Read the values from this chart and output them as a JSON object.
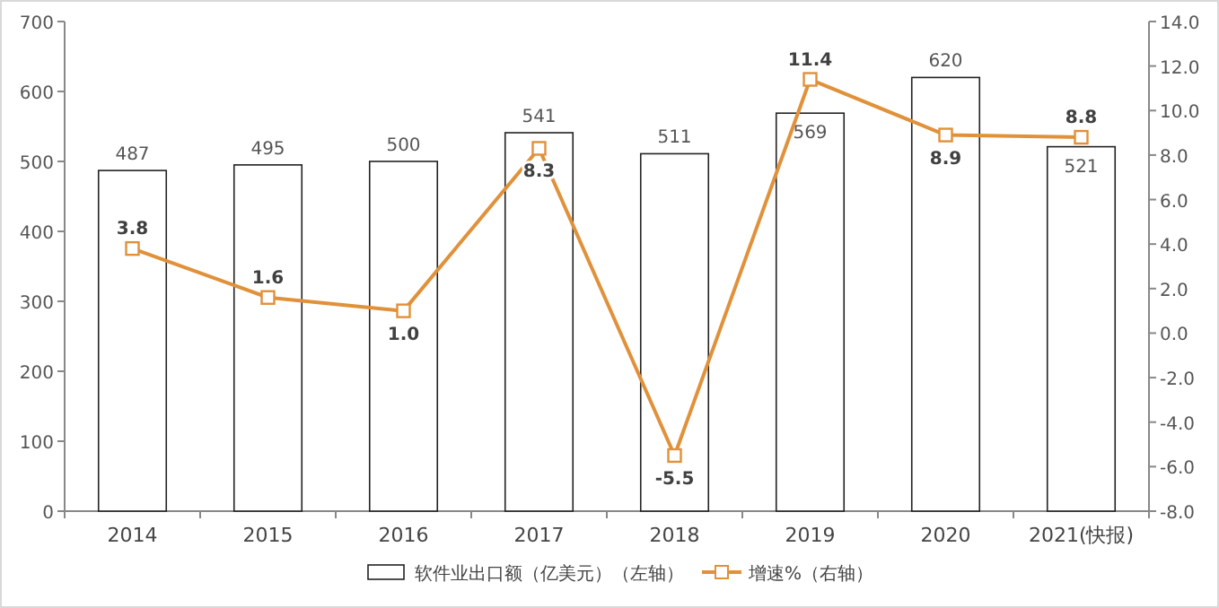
{
  "chart_data": {
    "type": "bar",
    "categories": [
      "2014",
      "2015",
      "2016",
      "2017",
      "2018",
      "2019",
      "2020",
      "2021(快报)"
    ],
    "series": [
      {
        "name": "软件业出口额（亿美元）（左轴）",
        "color": "#ffffff",
        "values": [
          487,
          495,
          500,
          541,
          511,
          569,
          620,
          521
        ],
        "value_labels": [
          "487",
          "495",
          "500",
          "541",
          "511",
          "569",
          "620",
          "521"
        ]
      },
      {
        "name": "增速%（右轴）",
        "type": "line",
        "axis": "y2",
        "color": "#e0913a",
        "marker": "square",
        "values": [
          3.8,
          1.6,
          1.0,
          8.3,
          -5.5,
          11.4,
          8.9,
          8.8
        ],
        "value_labels": [
          "3.8",
          "1.6",
          "1.0",
          "8.3",
          "-5.5",
          "11.4",
          "8.9",
          "8.8"
        ]
      }
    ],
    "ylim": [
      0,
      700
    ],
    "yticks": [
      0,
      100,
      200,
      300,
      400,
      500,
      600,
      700
    ],
    "y2lim": [
      -8,
      14
    ],
    "y2ticks": [
      {
        "value": -8,
        "label": "-8.0"
      },
      {
        "value": -6,
        "label": "-6.0"
      },
      {
        "value": -4,
        "label": "-4.0"
      },
      {
        "value": -2,
        "label": "-2.0"
      },
      {
        "value": 0,
        "label": "0.0"
      },
      {
        "value": 2,
        "label": "2.0"
      },
      {
        "value": 4,
        "label": "4.0"
      },
      {
        "value": 6,
        "label": "6.0"
      },
      {
        "value": 8,
        "label": "8.0"
      },
      {
        "value": 10,
        "label": "10.0"
      },
      {
        "value": 12,
        "label": "12.0"
      },
      {
        "value": 14,
        "label": "14.0"
      }
    ],
    "legend": "bottom",
    "grid": false
  }
}
